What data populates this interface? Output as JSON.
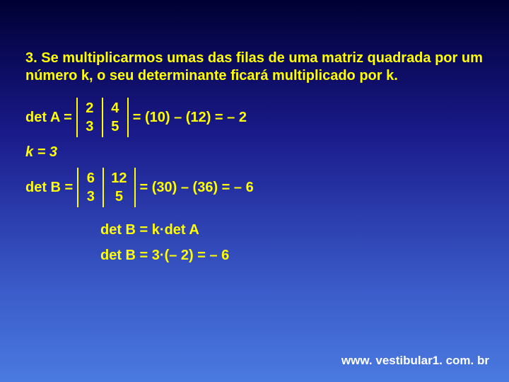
{
  "colors": {
    "text": "#ffff00",
    "footer_text": "#ffffff",
    "bg_top": "#000033",
    "bg_bottom": "#4a7ae0",
    "det_bar": "#ffff00"
  },
  "typography": {
    "family": "Arial",
    "body_pt": 15,
    "weight": "bold"
  },
  "property_text": "3. Se multiplicarmos umas das filas de uma matriz quadrada por um número k, o seu determinante ficará multiplicado por k.",
  "detA": {
    "label": "det A =",
    "matrix": {
      "r1c1": "2",
      "r1c2": "4",
      "r2c1": "3",
      "r2c2": "5"
    },
    "result": "= (10) – (12) = – 2"
  },
  "kline": "k = 3",
  "detB": {
    "label": "det B =",
    "matrix": {
      "r1c1": "6",
      "r1c2": "12",
      "r2c1": "3",
      "r2c2": "5"
    },
    "result": "= (30) – (36) = – 6"
  },
  "conclusion1": "det B = k·det A",
  "conclusion2": "det B = 3·(– 2) = – 6",
  "footer": "www. vestibular1. com. br"
}
